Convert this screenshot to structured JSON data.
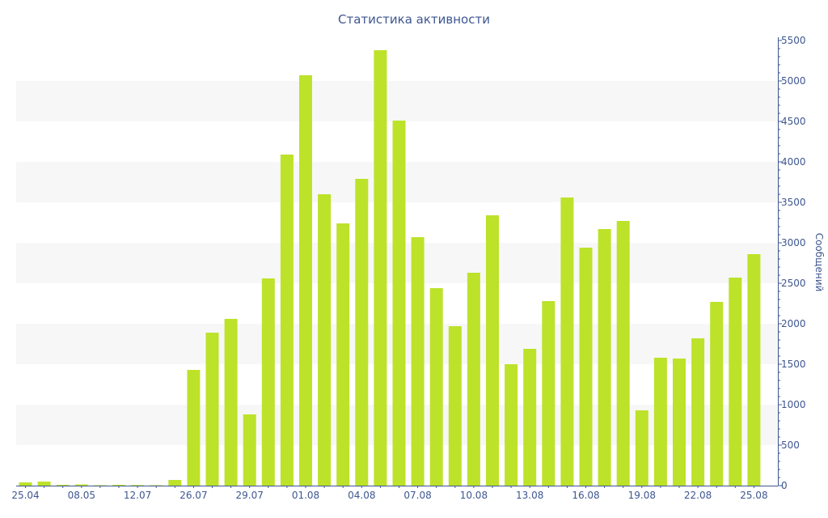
{
  "chart_data": {
    "type": "bar",
    "title": "Статистика активности",
    "ylabel": "Сообщений",
    "xlabel": "",
    "ylim": [
      0,
      5500
    ],
    "y_ticks": [
      0,
      500,
      1000,
      1500,
      2000,
      2500,
      3000,
      3500,
      4000,
      4500,
      5000,
      5500
    ],
    "y_axis_side": "right",
    "grid": "alternating horizontal bands",
    "bar_color": "#bde22a",
    "band_color": "#f7f7f7",
    "text_color": "#3e5690",
    "x_tick_labels": [
      {
        "index": 0,
        "label": "25.04"
      },
      {
        "index": 3,
        "label": "08.05"
      },
      {
        "index": 6,
        "label": "12.07"
      },
      {
        "index": 9,
        "label": "26.07"
      },
      {
        "index": 12,
        "label": "29.07"
      },
      {
        "index": 15,
        "label": "01.08"
      },
      {
        "index": 18,
        "label": "04.08"
      },
      {
        "index": 21,
        "label": "07.08"
      },
      {
        "index": 24,
        "label": "10.08"
      },
      {
        "index": 27,
        "label": "13.08"
      },
      {
        "index": 30,
        "label": "16.08"
      },
      {
        "index": 33,
        "label": "19.08"
      },
      {
        "index": 36,
        "label": "22.08"
      },
      {
        "index": 39,
        "label": "25.08"
      }
    ],
    "values": [
      40,
      50,
      10,
      15,
      5,
      10,
      8,
      5,
      70,
      1430,
      1890,
      2060,
      880,
      2560,
      4090,
      5070,
      3600,
      3240,
      3790,
      5380,
      4510,
      3070,
      2440,
      1970,
      2630,
      3340,
      1500,
      1690,
      2280,
      3560,
      2940,
      3170,
      3270,
      930,
      1580,
      1570,
      1820,
      2270,
      2570,
      2860
    ]
  }
}
